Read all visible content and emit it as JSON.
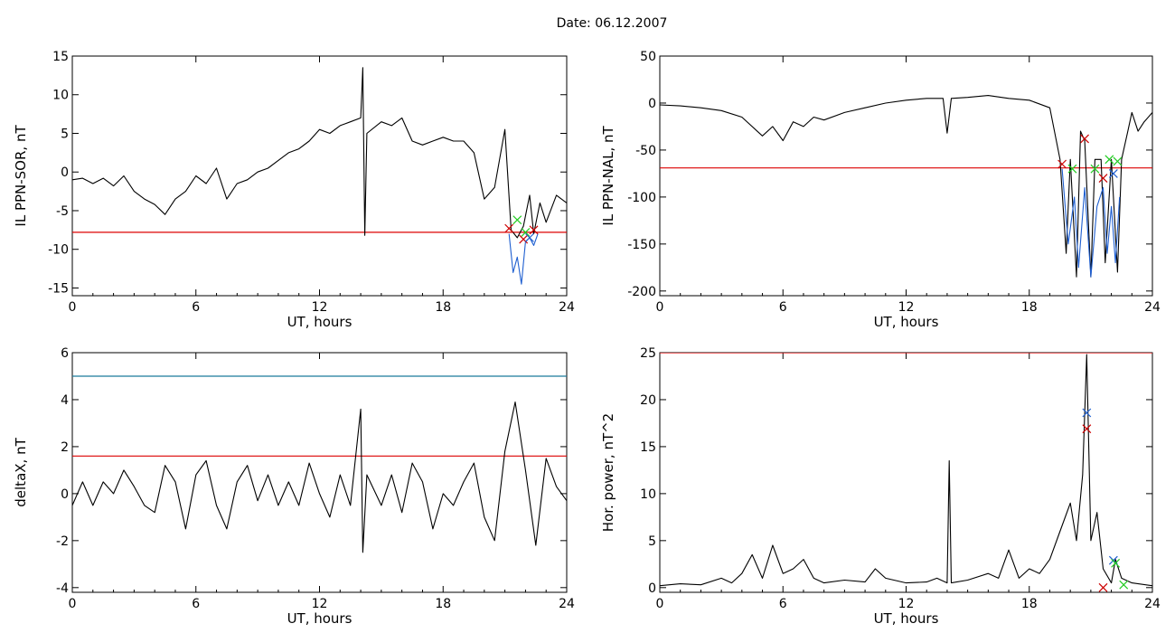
{
  "header": {
    "date_label": "Date:  06.12.2007"
  },
  "chart_data": [
    {
      "id": "ppn-sor",
      "type": "line",
      "ylabel": "IL PPN-SOR, nT",
      "xlabel": "UT, hours",
      "xlim": [
        0,
        24
      ],
      "ylim": [
        -16,
        15
      ],
      "xticks": [
        0,
        6,
        12,
        18,
        24
      ],
      "xtick_labels": [
        "0",
        "6",
        "12",
        "18",
        "24"
      ],
      "yticks": [
        -15,
        -10,
        -5,
        0,
        5,
        10,
        15
      ],
      "ytick_labels": [
        "-15",
        "-10",
        "-5",
        "0",
        "5",
        "10",
        "15"
      ],
      "series": [
        {
          "color": "#000000",
          "points": [
            [
              0,
              -1
            ],
            [
              0.5,
              -0.8
            ],
            [
              1,
              -1.5
            ],
            [
              1.5,
              -0.8
            ],
            [
              2,
              -1.8
            ],
            [
              2.5,
              -0.5
            ],
            [
              3,
              -2.5
            ],
            [
              3.5,
              -3.5
            ],
            [
              4,
              -4.2
            ],
            [
              4.5,
              -5.5
            ],
            [
              5,
              -3.5
            ],
            [
              5.5,
              -2.5
            ],
            [
              6,
              -0.5
            ],
            [
              6.5,
              -1.5
            ],
            [
              7,
              0.5
            ],
            [
              7.5,
              -3.5
            ],
            [
              8,
              -1.5
            ],
            [
              8.5,
              -1
            ],
            [
              9,
              0
            ],
            [
              9.5,
              0.5
            ],
            [
              10,
              1.5
            ],
            [
              10.5,
              2.5
            ],
            [
              11,
              3
            ],
            [
              11.5,
              4
            ],
            [
              12,
              5.5
            ],
            [
              12.5,
              5
            ],
            [
              13,
              6
            ],
            [
              13.5,
              6.5
            ],
            [
              14,
              7
            ],
            [
              14.1,
              13.5
            ],
            [
              14.2,
              -8.2
            ],
            [
              14.3,
              5
            ],
            [
              15,
              6.5
            ],
            [
              15.5,
              6
            ],
            [
              16,
              7
            ],
            [
              16.5,
              4
            ],
            [
              17,
              3.5
            ],
            [
              17.5,
              4
            ],
            [
              18,
              4.5
            ],
            [
              18.5,
              4
            ],
            [
              19,
              4
            ],
            [
              19.5,
              2.5
            ],
            [
              20,
              -3.5
            ],
            [
              20.5,
              -2
            ],
            [
              21,
              5.5
            ],
            [
              21.3,
              -7.5
            ],
            [
              21.6,
              -8.5
            ],
            [
              21.9,
              -7
            ],
            [
              22.2,
              -3
            ],
            [
              22.4,
              -8
            ],
            [
              22.7,
              -4
            ],
            [
              23,
              -6.5
            ],
            [
              23.5,
              -3
            ],
            [
              24,
              -4
            ]
          ]
        },
        {
          "color": "#1f5fd0",
          "points": [
            [
              21.2,
              -8
            ],
            [
              21.4,
              -13
            ],
            [
              21.6,
              -11
            ],
            [
              21.8,
              -14.5
            ],
            [
              22,
              -9
            ],
            [
              22.2,
              -8.5
            ],
            [
              22.4,
              -9.5
            ],
            [
              22.6,
              -8
            ]
          ]
        }
      ],
      "hlines": [
        {
          "y": -7.8,
          "color": "#dd0000"
        }
      ],
      "markers": [
        {
          "x": 21.2,
          "y": -7.3,
          "color": "#cc0000"
        },
        {
          "x": 21.6,
          "y": -6.2,
          "color": "#22cc22"
        },
        {
          "x": 21.9,
          "y": -8.7,
          "color": "#cc0000"
        },
        {
          "x": 22.0,
          "y": -7.8,
          "color": "#22cc22"
        },
        {
          "x": 22.2,
          "y": -8.5,
          "color": "#1f5fd0"
        },
        {
          "x": 22.4,
          "y": -7.5,
          "color": "#cc0000"
        }
      ]
    },
    {
      "id": "ppn-nal",
      "type": "line",
      "ylabel": "IL PPN-NAL, nT",
      "xlabel": "UT, hours",
      "xlim": [
        0,
        24
      ],
      "ylim": [
        -205,
        50
      ],
      "xticks": [
        0,
        6,
        12,
        18,
        24
      ],
      "xtick_labels": [
        "0",
        "6",
        "12",
        "18",
        "24"
      ],
      "yticks": [
        -200,
        -150,
        -100,
        -50,
        0,
        50
      ],
      "ytick_labels": [
        "-200",
        "-150",
        "-100",
        "-50",
        "0",
        "50"
      ],
      "series": [
        {
          "color": "#000000",
          "points": [
            [
              0,
              -2
            ],
            [
              1,
              -3
            ],
            [
              2,
              -5
            ],
            [
              3,
              -8
            ],
            [
              4,
              -15
            ],
            [
              5,
              -35
            ],
            [
              5.5,
              -25
            ],
            [
              6,
              -40
            ],
            [
              6.5,
              -20
            ],
            [
              7,
              -25
            ],
            [
              7.5,
              -15
            ],
            [
              8,
              -18
            ],
            [
              9,
              -10
            ],
            [
              10,
              -5
            ],
            [
              11,
              0
            ],
            [
              12,
              3
            ],
            [
              13,
              5
            ],
            [
              13.8,
              5
            ],
            [
              14,
              -32
            ],
            [
              14.2,
              5
            ],
            [
              15,
              6
            ],
            [
              16,
              8
            ],
            [
              17,
              5
            ],
            [
              18,
              3
            ],
            [
              19,
              -5
            ],
            [
              19.5,
              -60
            ],
            [
              19.8,
              -160
            ],
            [
              20,
              -60
            ],
            [
              20.3,
              -185
            ],
            [
              20.5,
              -30
            ],
            [
              20.7,
              -40
            ],
            [
              21,
              -185
            ],
            [
              21.2,
              -60
            ],
            [
              21.5,
              -60
            ],
            [
              21.7,
              -170
            ],
            [
              22,
              -60
            ],
            [
              22.3,
              -180
            ],
            [
              22.5,
              -60
            ],
            [
              22.8,
              -30
            ],
            [
              23,
              -10
            ],
            [
              23.3,
              -30
            ],
            [
              23.6,
              -20
            ],
            [
              24,
              -10
            ]
          ]
        },
        {
          "color": "#1f5fd0",
          "points": [
            [
              19.6,
              -70
            ],
            [
              19.9,
              -150
            ],
            [
              20.2,
              -100
            ],
            [
              20.4,
              -175
            ],
            [
              20.7,
              -90
            ],
            [
              21,
              -185
            ],
            [
              21.3,
              -110
            ],
            [
              21.6,
              -90
            ],
            [
              21.8,
              -160
            ],
            [
              22,
              -110
            ],
            [
              22.2,
              -170
            ],
            [
              22.4,
              -100
            ]
          ]
        }
      ],
      "hlines": [
        {
          "y": -69,
          "color": "#dd0000"
        }
      ],
      "markers": [
        {
          "x": 19.6,
          "y": -65,
          "color": "#cc0000"
        },
        {
          "x": 20.1,
          "y": -70,
          "color": "#22cc22"
        },
        {
          "x": 20.7,
          "y": -38,
          "color": "#cc0000"
        },
        {
          "x": 21.2,
          "y": -70,
          "color": "#22cc22"
        },
        {
          "x": 21.6,
          "y": -80,
          "color": "#cc0000"
        },
        {
          "x": 21.9,
          "y": -60,
          "color": "#22cc22"
        },
        {
          "x": 22.1,
          "y": -75,
          "color": "#1f5fd0"
        },
        {
          "x": 22.3,
          "y": -62,
          "color": "#22cc22"
        }
      ]
    },
    {
      "id": "deltax",
      "type": "line",
      "ylabel": "deltaX, nT",
      "xlabel": "UT, hours",
      "xlim": [
        0,
        24
      ],
      "ylim": [
        -4.2,
        6
      ],
      "xticks": [
        0,
        6,
        12,
        18,
        24
      ],
      "xtick_labels": [
        "0",
        "6",
        "12",
        "18",
        "24"
      ],
      "yticks": [
        -4,
        -2,
        0,
        2,
        4,
        6
      ],
      "ytick_labels": [
        "-4",
        "-2",
        "0",
        "2",
        "4",
        "6"
      ],
      "series": [
        {
          "color": "#000000",
          "points": [
            [
              0,
              -0.5
            ],
            [
              0.5,
              0.5
            ],
            [
              1,
              -0.5
            ],
            [
              1.5,
              0.5
            ],
            [
              2,
              0
            ],
            [
              2.5,
              1
            ],
            [
              3,
              0.3
            ],
            [
              3.5,
              -0.5
            ],
            [
              4,
              -0.8
            ],
            [
              4.5,
              1.2
            ],
            [
              5,
              0.5
            ],
            [
              5.5,
              -1.5
            ],
            [
              6,
              0.8
            ],
            [
              6.5,
              1.4
            ],
            [
              7,
              -0.5
            ],
            [
              7.5,
              -1.5
            ],
            [
              8,
              0.5
            ],
            [
              8.5,
              1.2
            ],
            [
              9,
              -0.3
            ],
            [
              9.5,
              0.8
            ],
            [
              10,
              -0.5
            ],
            [
              10.5,
              0.5
            ],
            [
              11,
              -0.5
            ],
            [
              11.5,
              1.3
            ],
            [
              12,
              0
            ],
            [
              12.5,
              -1
            ],
            [
              13,
              0.8
            ],
            [
              13.5,
              -0.5
            ],
            [
              14,
              3.6
            ],
            [
              14.1,
              -2.5
            ],
            [
              14.3,
              0.8
            ],
            [
              15,
              -0.5
            ],
            [
              15.5,
              0.8
            ],
            [
              16,
              -0.8
            ],
            [
              16.5,
              1.3
            ],
            [
              17,
              0.5
            ],
            [
              17.5,
              -1.5
            ],
            [
              18,
              0
            ],
            [
              18.5,
              -0.5
            ],
            [
              19,
              0.5
            ],
            [
              19.5,
              1.3
            ],
            [
              20,
              -1
            ],
            [
              20.5,
              -2
            ],
            [
              21,
              1.8
            ],
            [
              21.5,
              3.9
            ],
            [
              22,
              1
            ],
            [
              22.5,
              -2.2
            ],
            [
              23,
              1.5
            ],
            [
              23.5,
              0.3
            ],
            [
              24,
              -0.3
            ]
          ]
        }
      ],
      "hlines": [
        {
          "y": 5.0,
          "color": "#1a7a9a"
        },
        {
          "y": 1.6,
          "color": "#dd0000"
        }
      ],
      "markers": []
    },
    {
      "id": "hor-power",
      "type": "line",
      "ylabel": "Hor. power, nT^2",
      "xlabel": "UT, hours",
      "xlim": [
        0,
        24
      ],
      "ylim": [
        -0.5,
        25
      ],
      "xticks": [
        0,
        6,
        12,
        18,
        24
      ],
      "xtick_labels": [
        "0",
        "6",
        "12",
        "18",
        "24"
      ],
      "yticks": [
        0,
        5,
        10,
        15,
        20,
        25
      ],
      "ytick_labels": [
        "0",
        "5",
        "10",
        "15",
        "20",
        "25"
      ],
      "series": [
        {
          "color": "#000000",
          "points": [
            [
              0,
              0.2
            ],
            [
              1,
              0.4
            ],
            [
              2,
              0.3
            ],
            [
              3,
              1
            ],
            [
              3.5,
              0.5
            ],
            [
              4,
              1.5
            ],
            [
              4.5,
              3.5
            ],
            [
              5,
              1
            ],
            [
              5.5,
              4.5
            ],
            [
              6,
              1.5
            ],
            [
              6.5,
              2
            ],
            [
              7,
              3
            ],
            [
              7.5,
              1
            ],
            [
              8,
              0.5
            ],
            [
              9,
              0.8
            ],
            [
              10,
              0.6
            ],
            [
              10.5,
              2
            ],
            [
              11,
              1
            ],
            [
              12,
              0.5
            ],
            [
              13,
              0.6
            ],
            [
              13.5,
              1
            ],
            [
              14,
              0.5
            ],
            [
              14.1,
              13.5
            ],
            [
              14.2,
              0.5
            ],
            [
              15,
              0.8
            ],
            [
              16,
              1.5
            ],
            [
              16.5,
              1
            ],
            [
              17,
              4
            ],
            [
              17.5,
              1
            ],
            [
              18,
              2
            ],
            [
              18.5,
              1.5
            ],
            [
              19,
              3
            ],
            [
              19.5,
              6
            ],
            [
              20,
              9
            ],
            [
              20.3,
              5
            ],
            [
              20.6,
              12
            ],
            [
              20.8,
              24.8
            ],
            [
              21,
              5
            ],
            [
              21.3,
              8
            ],
            [
              21.6,
              2
            ],
            [
              22,
              0.5
            ],
            [
              22.2,
              3
            ],
            [
              22.5,
              1
            ],
            [
              23,
              0.5
            ],
            [
              24,
              0.2
            ]
          ]
        }
      ],
      "hlines": [
        {
          "y": 25,
          "color": "#dd0000"
        }
      ],
      "markers": [
        {
          "x": 20.8,
          "y": 18.6,
          "color": "#1f5fd0"
        },
        {
          "x": 20.8,
          "y": 16.9,
          "color": "#cc0000"
        },
        {
          "x": 22.1,
          "y": 2.9,
          "color": "#1f5fd0"
        },
        {
          "x": 22.2,
          "y": 2.6,
          "color": "#22cc22"
        },
        {
          "x": 21.6,
          "y": 0,
          "color": "#cc0000"
        },
        {
          "x": 22.6,
          "y": 0.3,
          "color": "#22cc22"
        }
      ]
    }
  ]
}
